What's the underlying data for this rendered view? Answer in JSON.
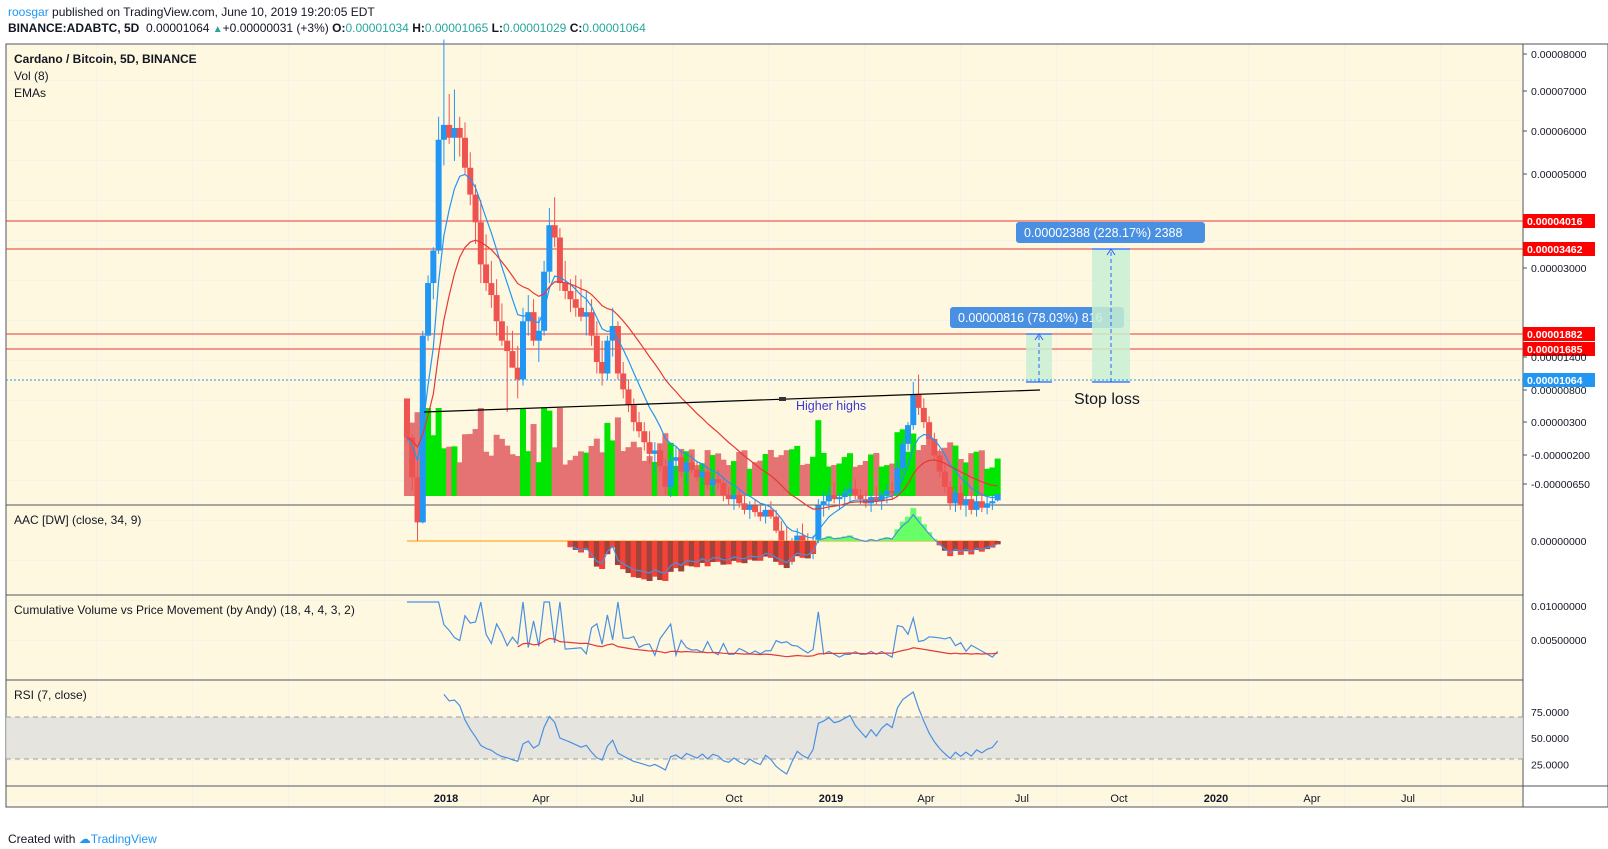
{
  "header": {
    "author": "roosgar",
    "published": "published on TradingView.com, June 10, 2019 19:20:05 EDT",
    "symbol": "BINANCE:ADABTC, 5D",
    "last": "0.00001064",
    "change": "+0.00000031 (+3%)",
    "o_label": "O:",
    "o": "0.00001034",
    "h_label": "H:",
    "h": "0.00001065",
    "l_label": "L:",
    "l": "0.00001029",
    "c_label": "C:",
    "c": "0.00001064"
  },
  "footer": {
    "created": "Created with",
    "brand": "TradingView"
  },
  "panes": {
    "main": {
      "title": "Cardano / Bitcoin, 5D, BINANCE",
      "vol": "Vol (8)",
      "emas": "EMAs"
    },
    "aac": {
      "title": "AAC [DW] (close, 34, 9)"
    },
    "cvp": {
      "title": "Cumulative Volume vs Price Movement (by Andy) (18, 4, 4, 3, 2)"
    },
    "rsi": {
      "title": "RSI (7, close)"
    }
  },
  "annotations": {
    "higher_highs": "Higher highs",
    "stop_loss": "Stop loss",
    "measure1": "0.00000816 (78.03%) 816",
    "measure2": "0.00002388 (228.17%) 2388"
  },
  "colors": {
    "up": "#2196f3",
    "down": "#ef5350",
    "vol_up": "#00e600",
    "vol_down": "#e57373",
    "hline": "#e53935",
    "ema_fast": "#2196f3",
    "ema_slow": "#e53935",
    "current_price": "#2196f3",
    "badge_red": "#ff0000",
    "badge_blue": "#2196f3"
  },
  "chart_data": {
    "type": "candlestick",
    "x_axis_labels": [
      "2018",
      "Apr",
      "Jul",
      "Oct",
      "2019",
      "Apr",
      "Jul",
      "Oct",
      "2020",
      "Apr",
      "Jul"
    ],
    "x_axis_label_dates": [
      "2018-01-01",
      "2018-04-01",
      "2018-07-01",
      "2018-10-01",
      "2019-01-01",
      "2019-04-01",
      "2019-07-01",
      "2019-10-01",
      "2020-01-01",
      "2020-04-01",
      "2020-07-01"
    ],
    "price_axis_labels": [
      "0.00008000",
      "0.00007000",
      "0.00006000",
      "0.00005000",
      "0.00003000",
      "0.00001400",
      "0.00000800",
      "0.00000300",
      "-0.00000200",
      "-0.00000650"
    ],
    "price_axis_values": [
      8e-05,
      7e-05,
      6e-05,
      5e-05,
      3e-05,
      1.4e-05,
      8e-06,
      3e-06,
      -2e-06,
      -6.5e-06
    ],
    "horizontal_levels": [
      "0.00004016",
      "0.00003462",
      "0.00001882",
      "0.00001685"
    ],
    "horizontal_level_values": [
      4.016e-05,
      3.462e-05,
      1.882e-05,
      1.685e-05
    ],
    "current_price": "0.00001064",
    "current_price_value": 1.064e-05,
    "aac_axis_labels": [
      "0.00000000"
    ],
    "cvp_axis_labels": [
      "0.01000000",
      "0.00500000"
    ],
    "rsi_axis_labels": [
      "75.0000",
      "50.0000",
      "25.0000"
    ],
    "rsi_axis_values": [
      75,
      50,
      25
    ],
    "rsi_band": [
      30,
      70
    ],
    "candles": [
      [
        "2017-11-25",
        1.65e-05,
        1.65e-05,
        1.35e-05,
        1.38e-05
      ],
      [
        "2017-11-30",
        1.38e-05,
        1.4e-05,
        1.08e-05,
        1.15e-05
      ],
      [
        "2017-12-05",
        1.15e-05,
        1.25e-05,
        8.6e-06,
        9.35e-06
      ],
      [
        "2017-12-10",
        9.35e-06,
        2.25e-05,
        9.3e-06,
        2.2e-05
      ],
      [
        "2017-12-15",
        2.2e-05,
        2.9e-05,
        2.15e-05,
        2.8e-05
      ],
      [
        "2017-12-20",
        2.8e-05,
        3.3e-05,
        2.6e-05,
        3.25e-05
      ],
      [
        "2017-12-25",
        3.25e-05,
        6e-05,
        3.2e-05,
        5.4e-05
      ],
      [
        "2017-12-30",
        5.4e-05,
        8.55e-05,
        4.8e-05,
        5.78e-05
      ],
      [
        "2018-01-04",
        5.78e-05,
        6.66e-05,
        5.3e-05,
        5.45e-05
      ],
      [
        "2018-01-09",
        5.45e-05,
        6.8e-05,
        4.9e-05,
        5.7e-05
      ],
      [
        "2018-01-14",
        5.7e-05,
        6e-05,
        5e-05,
        5.45e-05
      ],
      [
        "2018-01-19",
        5.45e-05,
        5.85e-05,
        4.6e-05,
        4.75e-05
      ],
      [
        "2018-01-24",
        4.75e-05,
        5.1e-05,
        4e-05,
        4.2e-05
      ],
      [
        "2018-01-29",
        4.2e-05,
        4.4e-05,
        3.35e-05,
        3.7e-05
      ],
      [
        "2018-02-03",
        3.7e-05,
        4.1e-05,
        2.8e-05,
        3.05e-05
      ],
      [
        "2018-02-08",
        3.05e-05,
        3.5e-05,
        2.7e-05,
        2.8e-05
      ],
      [
        "2018-02-13",
        2.8e-05,
        3.1e-05,
        2.5e-05,
        2.65e-05
      ],
      [
        "2018-02-18",
        2.65e-05,
        2.85e-05,
        2.2e-05,
        2.35e-05
      ],
      [
        "2018-02-23",
        2.35e-05,
        2.55e-05,
        2.1e-05,
        2.15e-05
      ],
      [
        "2018-02-28",
        2.15e-05,
        2.3e-05,
        1.55e-05,
        2.05e-05
      ],
      [
        "2018-03-05",
        2.05e-05,
        2.25e-05,
        1.9e-05,
        1.9e-05
      ],
      [
        "2018-03-10",
        1.9e-05,
        2.1e-05,
        1.65e-05,
        1.8e-05
      ],
      [
        "2018-03-15",
        1.8e-05,
        2.5e-05,
        1.75e-05,
        2.35e-05
      ],
      [
        "2018-03-20",
        2.35e-05,
        2.65e-05,
        2.2e-05,
        2.45e-05
      ],
      [
        "2018-03-25",
        2.45e-05,
        2.6e-05,
        2.1e-05,
        2.15e-05
      ],
      [
        "2018-03-30",
        2.15e-05,
        2.4e-05,
        1.95e-05,
        2.25e-05
      ],
      [
        "2018-04-04",
        2.25e-05,
        3.1e-05,
        2.2e-05,
        2.95e-05
      ],
      [
        "2018-04-09",
        2.95e-05,
        3.95e-05,
        2.8e-05,
        3.65e-05
      ],
      [
        "2018-04-14",
        3.65e-05,
        4.15e-05,
        3.3e-05,
        3.45e-05
      ],
      [
        "2018-04-19",
        3.45e-05,
        3.6e-05,
        2.7e-05,
        2.8e-05
      ],
      [
        "2018-04-24",
        2.8e-05,
        3.1e-05,
        2.6e-05,
        2.7e-05
      ],
      [
        "2018-04-29",
        2.7e-05,
        2.85e-05,
        2.45e-05,
        2.6e-05
      ],
      [
        "2018-05-04",
        2.6e-05,
        2.9e-05,
        2.4e-05,
        2.5e-05
      ],
      [
        "2018-05-09",
        2.5e-05,
        2.85e-05,
        2.35e-05,
        2.4e-05
      ],
      [
        "2018-05-14",
        2.4e-05,
        2.7e-05,
        2.2e-05,
        2.45e-05
      ],
      [
        "2018-05-19",
        2.45e-05,
        2.6e-05,
        2.1e-05,
        2.2e-05
      ],
      [
        "2018-05-24",
        2.2e-05,
        2.35e-05,
        1.85e-05,
        1.95e-05
      ],
      [
        "2018-05-29",
        1.95e-05,
        2.15e-05,
        1.75e-05,
        1.85e-05
      ],
      [
        "2018-06-03",
        1.85e-05,
        2.2e-05,
        1.8e-05,
        2.15e-05
      ],
      [
        "2018-06-08",
        2.15e-05,
        2.5e-05,
        2e-05,
        2.3e-05
      ],
      [
        "2018-06-13",
        2.3e-05,
        2.35e-05,
        1.8e-05,
        1.85e-05
      ],
      [
        "2018-06-18",
        1.85e-05,
        1.95e-05,
        1.65e-05,
        1.72e-05
      ],
      [
        "2018-06-23",
        1.72e-05,
        1.8e-05,
        1.55e-05,
        1.6e-05
      ],
      [
        "2018-06-28",
        1.6e-05,
        1.65e-05,
        1.42e-05,
        1.48e-05
      ],
      [
        "2018-07-03",
        1.48e-05,
        1.55e-05,
        1.38e-05,
        1.42e-05
      ],
      [
        "2018-07-08",
        1.42e-05,
        1.48e-05,
        1.3e-05,
        1.35e-05
      ],
      [
        "2018-07-13",
        1.35e-05,
        1.42e-05,
        1.22e-05,
        1.28e-05
      ],
      [
        "2018-07-18",
        1.28e-05,
        1.35e-05,
        1.18e-05,
        1.3e-05
      ],
      [
        "2018-07-23",
        1.3e-05,
        1.34e-05,
        1.18e-05,
        1.21e-05
      ],
      [
        "2018-07-28",
        1.21e-05,
        1.25e-05,
        1.06e-05,
        1.1e-05
      ],
      [
        "2018-08-02",
        1.1e-05,
        1.28e-05,
        1.05e-05,
        1.24e-05
      ],
      [
        "2018-08-07",
        1.24e-05,
        1.32e-05,
        1.18e-05,
        1.26e-05
      ],
      [
        "2018-08-12",
        1.26e-05,
        1.3e-05,
        1.15e-05,
        1.18e-05
      ],
      [
        "2018-08-17",
        1.18e-05,
        1.25e-05,
        1.12e-05,
        1.23e-05
      ],
      [
        "2018-08-22",
        1.23e-05,
        1.28e-05,
        1.17e-05,
        1.19e-05
      ],
      [
        "2018-08-27",
        1.19e-05,
        1.24e-05,
        1.13e-05,
        1.15e-05
      ],
      [
        "2018-09-01",
        1.15e-05,
        1.22e-05,
        1.11e-05,
        1.18e-05
      ],
      [
        "2018-09-06",
        1.18e-05,
        1.21e-05,
        1.09e-05,
        1.11e-05
      ],
      [
        "2018-09-11",
        1.11e-05,
        1.17e-05,
        1.07e-05,
        1.14e-05
      ],
      [
        "2018-09-16",
        1.14e-05,
        1.19e-05,
        1.09e-05,
        1.12e-05
      ],
      [
        "2018-09-21",
        1.12e-05,
        1.15e-05,
        1.03e-05,
        1.06e-05
      ],
      [
        "2018-09-26",
        1.06e-05,
        1.1e-05,
        1.01e-05,
        1.04e-05
      ],
      [
        "2018-10-01",
        1.04e-05,
        1.08e-05,
        9.9e-06,
        1.06e-05
      ],
      [
        "2018-10-06",
        1.06e-05,
        1.09e-05,
        1e-05,
        1.02e-05
      ],
      [
        "2018-10-11",
        1.02e-05,
        1.06e-05,
        9.7e-06,
        9.9e-06
      ],
      [
        "2018-10-16",
        9.9e-06,
        1.03e-05,
        9.5e-06,
        1.01e-05
      ],
      [
        "2018-10-21",
        1.01e-05,
        1.04e-05,
        9.6e-06,
        9.8e-06
      ],
      [
        "2018-10-26",
        9.8e-06,
        1.02e-05,
        9.4e-06,
        9.6e-06
      ],
      [
        "2018-10-31",
        9.6e-06,
        1.01e-05,
        9.3e-06,
        9.9e-06
      ],
      [
        "2018-11-05",
        9.9e-06,
        1.03e-05,
        9.5e-06,
        9.6e-06
      ],
      [
        "2018-11-10",
        9.6e-06,
        9.9e-06,
        8.9e-06,
        9e-06
      ],
      [
        "2018-11-15",
        9e-06,
        9.4e-06,
        8.3e-06,
        8.5e-06
      ],
      [
        "2018-11-20",
        8.5e-06,
        9.2e-06,
        7.8e-06,
        8e-06
      ],
      [
        "2018-11-25",
        8e-06,
        8.7e-06,
        7.7e-06,
        8.4e-06
      ],
      [
        "2018-11-30",
        8.4e-06,
        9.1e-06,
        8.1e-06,
        8.8e-06
      ],
      [
        "2018-12-05",
        8.8e-06,
        9.3e-06,
        8.3e-06,
        8.5e-06
      ],
      [
        "2018-12-10",
        8.5e-06,
        8.9e-06,
        8.1e-06,
        8.3e-06
      ],
      [
        "2018-12-15",
        8.3e-06,
        8.8e-06,
        7.9e-06,
        8.6e-06
      ],
      [
        "2018-12-20",
        8.6e-06,
        1.04e-05,
        8.5e-06,
        1.01e-05
      ],
      [
        "2018-12-25",
        1.01e-05,
        1.08e-05,
        9.6e-06,
        1.03e-05
      ],
      [
        "2018-12-30",
        1.03e-05,
        1.1e-05,
        9.9e-06,
        1.06e-05
      ],
      [
        "2019-01-04",
        1.06e-05,
        1.12e-05,
        1.02e-05,
        1.04e-05
      ],
      [
        "2019-01-09",
        1.04e-05,
        1.07e-05,
        9.9e-06,
        1.05e-05
      ],
      [
        "2019-01-14",
        1.05e-05,
        1.1e-05,
        1.01e-05,
        1.07e-05
      ],
      [
        "2019-01-19",
        1.07e-05,
        1.13e-05,
        1.03e-05,
        1.09e-05
      ],
      [
        "2019-01-24",
        1.09e-05,
        1.14e-05,
        1.04e-05,
        1.06e-05
      ],
      [
        "2019-01-29",
        1.06e-05,
        1.09e-05,
        1.01e-05,
        1.04e-05
      ],
      [
        "2019-02-03",
        1.04e-05,
        1.08e-05,
        1e-05,
        1.02e-05
      ],
      [
        "2019-02-08",
        1.02e-05,
        1.07e-05,
        9.8e-06,
        1.05e-05
      ],
      [
        "2019-02-13",
        1.05e-05,
        1.1e-05,
        1.01e-05,
        1.03e-05
      ],
      [
        "2019-02-18",
        1.03e-05,
        1.08e-05,
        9.9e-06,
        1.06e-05
      ],
      [
        "2019-02-23",
        1.06e-05,
        1.11e-05,
        1.02e-05,
        1.08e-05
      ],
      [
        "2019-02-28",
        1.08e-05,
        1.13e-05,
        1.04e-05,
        1.07e-05
      ],
      [
        "2019-03-05",
        1.07e-05,
        1.24e-05,
        1.05e-05,
        1.2e-05
      ],
      [
        "2019-03-10",
        1.2e-05,
        1.37e-05,
        1.17e-05,
        1.34e-05
      ],
      [
        "2019-03-15",
        1.34e-05,
        1.48e-05,
        1.3e-05,
        1.46e-05
      ],
      [
        "2019-03-20",
        1.46e-05,
        1.78e-05,
        1.43e-05,
        1.68e-05
      ],
      [
        "2019-03-25",
        1.68e-05,
        1.84e-05,
        1.53e-05,
        1.58e-05
      ],
      [
        "2019-03-30",
        1.58e-05,
        1.65e-05,
        1.44e-05,
        1.48e-05
      ],
      [
        "2019-04-04",
        1.48e-05,
        1.52e-05,
        1.33e-05,
        1.37e-05
      ],
      [
        "2019-04-09",
        1.37e-05,
        1.41e-05,
        1.24e-05,
        1.27e-05
      ],
      [
        "2019-04-14",
        1.27e-05,
        1.31e-05,
        1.15e-05,
        1.18e-05
      ],
      [
        "2019-04-19",
        1.18e-05,
        1.22e-05,
        1.07e-05,
        1.1e-05
      ],
      [
        "2019-04-24",
        1.1e-05,
        1.13e-05,
        9.9e-06,
        1.02e-05
      ],
      [
        "2019-04-29",
        1.02e-05,
        1.1e-05,
        9.8e-06,
        1.07e-05
      ],
      [
        "2019-05-04",
        1.07e-05,
        1.11e-05,
        9.9e-06,
        1.01e-05
      ],
      [
        "2019-05-09",
        1.01e-05,
        1.06e-05,
        9.6e-06,
        1.04e-05
      ],
      [
        "2019-05-14",
        1.04e-05,
        1.08e-05,
        9.7e-06,
        9.9e-06
      ],
      [
        "2019-05-19",
        9.9e-06,
        1.06e-05,
        9.6e-06,
        1.03e-05
      ],
      [
        "2019-05-24",
        1.03e-05,
        1.07e-05,
        9.8e-06,
        1e-05
      ],
      [
        "2019-05-29",
        1e-05,
        1.05e-05,
        9.7e-06,
        1.02e-05
      ],
      [
        "2019-06-03",
        1.02e-05,
        1.06e-05,
        9.9e-06,
        1.03e-05
      ],
      [
        "2019-06-08",
        1.034e-05,
        1.065e-05,
        1.029e-05,
        1.064e-05
      ]
    ]
  }
}
